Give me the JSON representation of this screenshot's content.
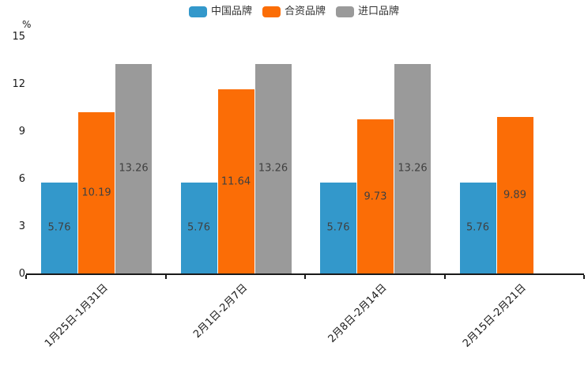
{
  "chart_data": {
    "type": "bar",
    "title": "",
    "unit_label": "%",
    "categories": [
      "1月25日-1月31日",
      "2月1日-2月7日",
      "2月8日-2月14日",
      "2月15日-2月21日"
    ],
    "series": [
      {
        "name": "中国品牌",
        "color": "#3398CB",
        "values": [
          5.76,
          5.76,
          5.76,
          5.76
        ]
      },
      {
        "name": "合资品牌",
        "color": "#FB6D06",
        "values": [
          10.19,
          11.64,
          9.73,
          9.89
        ]
      },
      {
        "name": "进口品牌",
        "color": "#9A9A9A",
        "values": [
          13.26,
          13.26,
          13.26,
          null
        ]
      }
    ],
    "ylim": [
      0,
      15
    ],
    "yticks": [
      0,
      3,
      6,
      9,
      12,
      15
    ],
    "legend_position": "top",
    "grid": false,
    "value_labels": true,
    "value_label_color": "#404040",
    "axis_color": "#1a1a1a",
    "background_color": "#ffffff"
  }
}
